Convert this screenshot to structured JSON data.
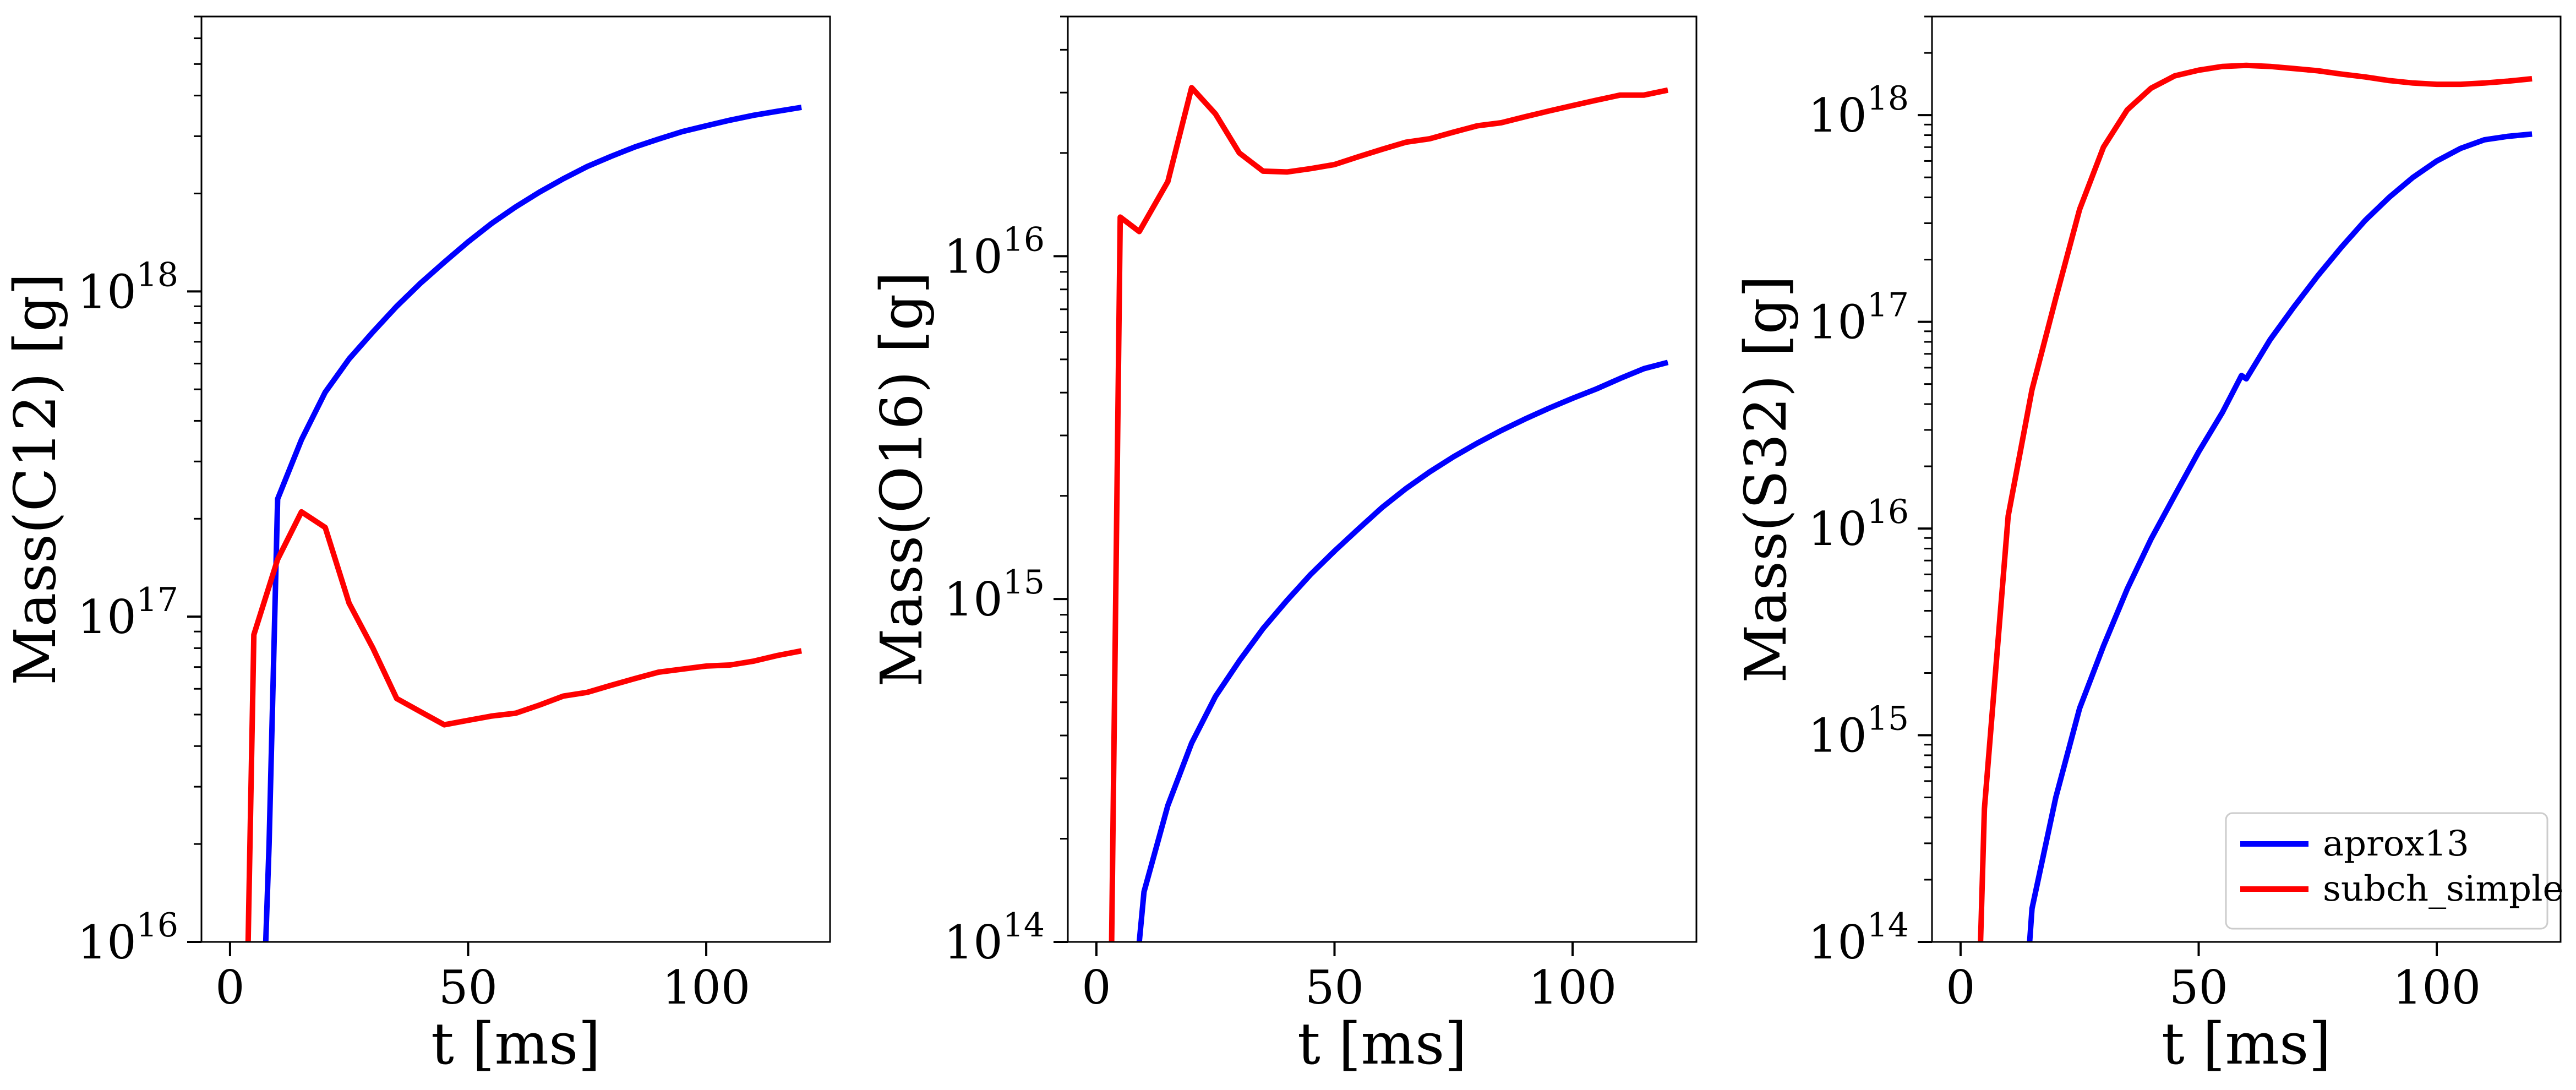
{
  "chart_data": [
    {
      "type": "line",
      "xlabel": "t [ms]",
      "ylabel": "Mass(C12) [g]",
      "y_scale": "log",
      "xlim": [
        -6,
        126
      ],
      "ylim": [
        1e+16,
        7e+18
      ],
      "x_ticks": [
        0,
        50,
        100
      ],
      "x_tick_labels": [
        "0",
        "50",
        "100"
      ],
      "y_ticks": [
        1e+16,
        1e+17,
        1e+18
      ],
      "y_tick_labels": [
        {
          "base": "10",
          "exp": "16"
        },
        {
          "base": "10",
          "exp": "17"
        },
        {
          "base": "10",
          "exp": "18"
        }
      ],
      "grid": false,
      "series": [
        {
          "color": "#0000ff",
          "points": [
            [
              7.5,
              1e+16
            ],
            [
              8.2,
              2e+16
            ],
            [
              10,
              2.3e+17
            ],
            [
              15,
              3.5e+17
            ],
            [
              20,
              4.9e+17
            ],
            [
              25,
              6.2e+17
            ],
            [
              30,
              7.5e+17
            ],
            [
              35,
              9e+17
            ],
            [
              40,
              1.06e+18
            ],
            [
              45,
              1.23e+18
            ],
            [
              50,
              1.42e+18
            ],
            [
              55,
              1.62e+18
            ],
            [
              60,
              1.82e+18
            ],
            [
              65,
              2.02e+18
            ],
            [
              70,
              2.22e+18
            ],
            [
              75,
              2.42e+18
            ],
            [
              80,
              2.6e+18
            ],
            [
              85,
              2.78e+18
            ],
            [
              90,
              2.94e+18
            ],
            [
              95,
              3.1e+18
            ],
            [
              100,
              3.23e+18
            ],
            [
              105,
              3.36e+18
            ],
            [
              110,
              3.48e+18
            ],
            [
              115,
              3.58e+18
            ],
            [
              120,
              3.68e+18
            ]
          ]
        },
        {
          "color": "#ff0000",
          "points": [
            [
              3.8,
              1e+16
            ],
            [
              5,
              8.8e+16
            ],
            [
              10,
              1.5e+17
            ],
            [
              15,
              2.1e+17
            ],
            [
              20,
              1.88e+17
            ],
            [
              25,
              1.1e+17
            ],
            [
              30,
              8e+16
            ],
            [
              35,
              5.6e+16
            ],
            [
              40,
              5.1e+16
            ],
            [
              45,
              4.65e+16
            ],
            [
              50,
              4.8e+16
            ],
            [
              55,
              4.95e+16
            ],
            [
              60,
              5.05e+16
            ],
            [
              65,
              5.35e+16
            ],
            [
              70,
              5.7e+16
            ],
            [
              75,
              5.85e+16
            ],
            [
              80,
              6.15e+16
            ],
            [
              85,
              6.45e+16
            ],
            [
              90,
              6.75e+16
            ],
            [
              95,
              6.9e+16
            ],
            [
              100,
              7.05e+16
            ],
            [
              105,
              7.1e+16
            ],
            [
              110,
              7.3e+16
            ],
            [
              115,
              7.6e+16
            ],
            [
              120,
              7.85e+16
            ]
          ]
        }
      ]
    },
    {
      "type": "line",
      "xlabel": "t [ms]",
      "ylabel": "Mass(O16) [g]",
      "y_scale": "log",
      "xlim": [
        -6,
        126
      ],
      "ylim": [
        100000000000000.0,
        5e+16
      ],
      "x_ticks": [
        0,
        50,
        100
      ],
      "x_tick_labels": [
        "0",
        "50",
        "100"
      ],
      "y_ticks": [
        100000000000000.0,
        1000000000000000.0,
        1e+16
      ],
      "y_tick_labels": [
        {
          "base": "10",
          "exp": "14"
        },
        {
          "base": "10",
          "exp": "15"
        },
        {
          "base": "10",
          "exp": "16"
        }
      ],
      "grid": false,
      "series": [
        {
          "color": "#0000ff",
          "points": [
            [
              9,
              100000000000000.0
            ],
            [
              10,
              140000000000000.0
            ],
            [
              15,
              250000000000000.0
            ],
            [
              20,
              380000000000000.0
            ],
            [
              25,
              520000000000000.0
            ],
            [
              30,
              660000000000000.0
            ],
            [
              35,
              820000000000000.0
            ],
            [
              40,
              990000000000000.0
            ],
            [
              45,
              1180000000000000.0
            ],
            [
              50,
              1380000000000000.0
            ],
            [
              55,
              1600000000000000.0
            ],
            [
              60,
              1850000000000000.0
            ],
            [
              65,
              2100000000000000.0
            ],
            [
              70,
              2350000000000000.0
            ],
            [
              75,
              2600000000000000.0
            ],
            [
              80,
              2850000000000000.0
            ],
            [
              85,
              3100000000000000.0
            ],
            [
              90,
              3350000000000000.0
            ],
            [
              95,
              3600000000000000.0
            ],
            [
              100,
              3850000000000000.0
            ],
            [
              105,
              4100000000000000.0
            ],
            [
              110,
              4400000000000000.0
            ],
            [
              115,
              4700000000000000.0
            ],
            [
              120,
              4900000000000000.0
            ]
          ]
        },
        {
          "color": "#ff0000",
          "points": [
            [
              3.2,
              100000000000000.0
            ],
            [
              5,
              1.3e+16
            ],
            [
              9,
              1.18e+16
            ],
            [
              15,
              1.65e+16
            ],
            [
              20,
              3.1e+16
            ],
            [
              25,
              2.6e+16
            ],
            [
              30,
              2e+16
            ],
            [
              35,
              1.77e+16
            ],
            [
              40,
              1.76e+16
            ],
            [
              45,
              1.8e+16
            ],
            [
              50,
              1.85e+16
            ],
            [
              55,
              1.95e+16
            ],
            [
              60,
              2.05e+16
            ],
            [
              65,
              2.15e+16
            ],
            [
              70,
              2.2e+16
            ],
            [
              75,
              2.3e+16
            ],
            [
              80,
              2.4e+16
            ],
            [
              85,
              2.45e+16
            ],
            [
              90,
              2.55e+16
            ],
            [
              95,
              2.65e+16
            ],
            [
              100,
              2.75e+16
            ],
            [
              105,
              2.85e+16
            ],
            [
              110,
              2.95e+16
            ],
            [
              115,
              2.95e+16
            ],
            [
              120,
              3.05e+16
            ]
          ]
        }
      ]
    },
    {
      "type": "line",
      "xlabel": "t [ms]",
      "ylabel": "Mass(S32) [g]",
      "y_scale": "log",
      "xlim": [
        -6,
        126
      ],
      "ylim": [
        100000000000000.0,
        3e+18
      ],
      "x_ticks": [
        0,
        50,
        100
      ],
      "x_tick_labels": [
        "0",
        "50",
        "100"
      ],
      "y_ticks": [
        100000000000000.0,
        1000000000000000.0,
        1e+16,
        1e+17,
        1e+18
      ],
      "y_tick_labels": [
        {
          "base": "10",
          "exp": "14"
        },
        {
          "base": "10",
          "exp": "15"
        },
        {
          "base": "10",
          "exp": "16"
        },
        {
          "base": "10",
          "exp": "17"
        },
        {
          "base": "10",
          "exp": "18"
        }
      ],
      "grid": false,
      "legend": {
        "placement": "lower-right"
      },
      "series": [
        {
          "name": "aprox13",
          "color": "#0000ff",
          "points": [
            [
              14.5,
              100000000000000.0
            ],
            [
              15,
              145000000000000.0
            ],
            [
              20,
              500000000000000.0
            ],
            [
              25,
              1350000000000000.0
            ],
            [
              30,
              2700000000000000.0
            ],
            [
              35,
              5100000000000000.0
            ],
            [
              40,
              8900000000000000.0
            ],
            [
              45,
              1.45e+16
            ],
            [
              50,
              2.35e+16
            ],
            [
              55,
              3.65e+16
            ],
            [
              59,
              5.5e+16
            ],
            [
              60,
              5.3e+16
            ],
            [
              65,
              8.2e+16
            ],
            [
              70,
              1.18e+17
            ],
            [
              75,
              1.67e+17
            ],
            [
              80,
              2.3e+17
            ],
            [
              85,
              3.1e+17
            ],
            [
              90,
              4e+17
            ],
            [
              95,
              5e+17
            ],
            [
              100,
              6e+17
            ],
            [
              105,
              6.9e+17
            ],
            [
              110,
              7.6e+17
            ],
            [
              115,
              7.9e+17
            ],
            [
              120,
              8.1e+17
            ]
          ]
        },
        {
          "name": "subch_simple",
          "color": "#ff0000",
          "points": [
            [
              4.2,
              100000000000000.0
            ],
            [
              5,
              440000000000000.0
            ],
            [
              10,
              1.15e+16
            ],
            [
              15,
              4.7e+16
            ],
            [
              20,
              1.3e+17
            ],
            [
              25,
              3.5e+17
            ],
            [
              30,
              7e+17
            ],
            [
              35,
              1.06e+18
            ],
            [
              40,
              1.35e+18
            ],
            [
              45,
              1.55e+18
            ],
            [
              50,
              1.65e+18
            ],
            [
              55,
              1.72e+18
            ],
            [
              60,
              1.74e+18
            ],
            [
              65,
              1.72e+18
            ],
            [
              70,
              1.68e+18
            ],
            [
              75,
              1.64e+18
            ],
            [
              80,
              1.58e+18
            ],
            [
              85,
              1.53e+18
            ],
            [
              90,
              1.47e+18
            ],
            [
              95,
              1.43e+18
            ],
            [
              100,
              1.41e+18
            ],
            [
              105,
              1.41e+18
            ],
            [
              110,
              1.43e+18
            ],
            [
              115,
              1.46e+18
            ],
            [
              120,
              1.5e+18
            ]
          ]
        }
      ]
    }
  ]
}
